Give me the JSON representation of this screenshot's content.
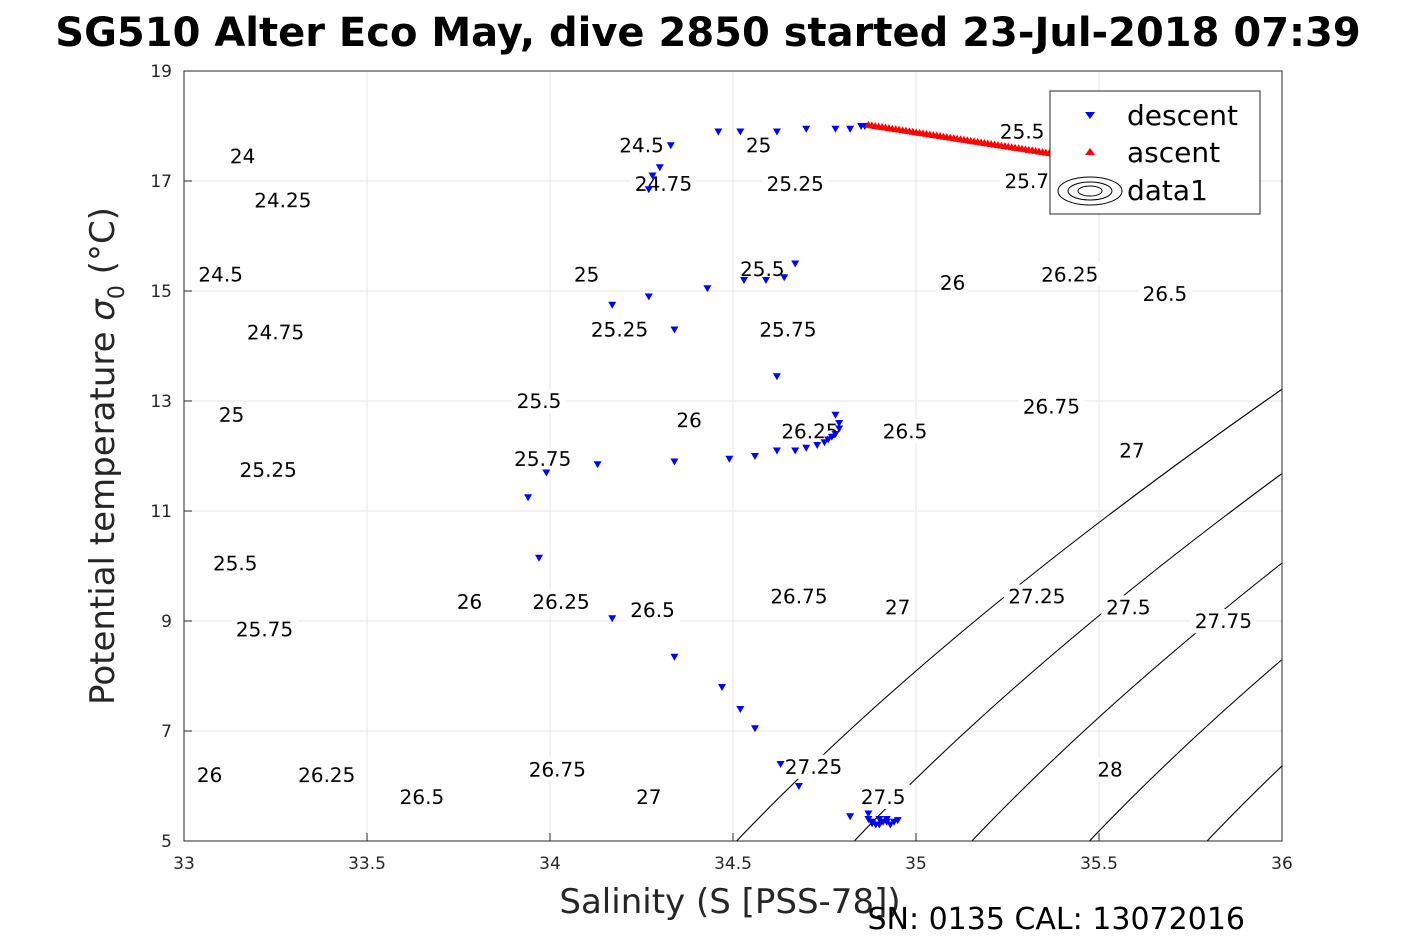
{
  "title": "SG510 Alter Eco May, dive 2850 started 23-Jul-2018 07:39",
  "footer": "SN: 0135  CAL: 13072016",
  "chart_data": {
    "type": "scatter",
    "xlabel": "Salinity (S [PSS-78])",
    "ylabel_main": "Potential temperature ",
    "ylabel_sym": "σ",
    "ylabel_sub": "0",
    "ylabel_unit": " (°C)",
    "xlim": [
      33,
      36
    ],
    "ylim": [
      5,
      19
    ],
    "xticks": [
      "33",
      "33.5",
      "34",
      "34.5",
      "35",
      "35.5",
      "36"
    ],
    "yticks": [
      "5",
      "7",
      "9",
      "11",
      "13",
      "15",
      "17",
      "19"
    ],
    "grid": true,
    "legend_position": "top-right",
    "colors": {
      "descent": "#0000ff",
      "ascent": "#ff0000",
      "contour": "#000000",
      "grid": "#e6e6e6"
    },
    "series": [
      {
        "name": "descent",
        "marker": "triangle-down",
        "color": "#0000ff",
        "points": [
          [
            33.94,
            11.25
          ],
          [
            33.97,
            10.15
          ],
          [
            33.99,
            11.7
          ],
          [
            34.13,
            11.85
          ],
          [
            34.17,
            9.05
          ],
          [
            34.17,
            14.75
          ],
          [
            34.27,
            16.85
          ],
          [
            34.28,
            17.1
          ],
          [
            34.3,
            17.25
          ],
          [
            34.27,
            14.9
          ],
          [
            34.33,
            17.65
          ],
          [
            34.34,
            14.3
          ],
          [
            34.34,
            11.9
          ],
          [
            34.34,
            8.35
          ],
          [
            34.43,
            15.05
          ],
          [
            34.46,
            17.9
          ],
          [
            34.47,
            7.8
          ],
          [
            34.49,
            11.95
          ],
          [
            34.52,
            17.9
          ],
          [
            34.52,
            7.4
          ],
          [
            34.53,
            15.2
          ],
          [
            34.56,
            12.0
          ],
          [
            34.56,
            7.05
          ],
          [
            34.59,
            15.2
          ],
          [
            34.62,
            13.45
          ],
          [
            34.62,
            17.9
          ],
          [
            34.62,
            12.1
          ],
          [
            34.63,
            6.4
          ],
          [
            34.64,
            15.25
          ],
          [
            34.67,
            15.5
          ],
          [
            34.67,
            12.1
          ],
          [
            34.68,
            6.0
          ],
          [
            34.7,
            12.15
          ],
          [
            34.7,
            17.95
          ],
          [
            34.73,
            12.2
          ],
          [
            34.75,
            12.25
          ],
          [
            34.76,
            12.3
          ],
          [
            34.77,
            12.35
          ],
          [
            34.78,
            12.4
          ],
          [
            34.79,
            12.5
          ],
          [
            34.79,
            12.6
          ],
          [
            34.78,
            17.95
          ],
          [
            34.78,
            12.75
          ],
          [
            34.82,
            17.95
          ],
          [
            34.82,
            5.45
          ],
          [
            34.85,
            18.0
          ],
          [
            34.86,
            18.0
          ],
          [
            34.87,
            5.5
          ],
          [
            34.87,
            5.4
          ],
          [
            34.88,
            5.35
          ],
          [
            34.89,
            5.3
          ],
          [
            34.9,
            5.3
          ],
          [
            34.91,
            5.35
          ],
          [
            34.92,
            5.35
          ],
          [
            34.93,
            5.3
          ],
          [
            34.94,
            5.35
          ],
          [
            34.95,
            5.38
          ],
          [
            34.88,
            5.32
          ],
          [
            34.9,
            5.4
          ],
          [
            34.92,
            5.4
          ]
        ]
      },
      {
        "name": "ascent",
        "marker": "triangle-up",
        "color": "#ff0000",
        "segment": {
          "s0": 34.87,
          "t0": 18.02,
          "s1": 35.42,
          "t1": 17.45,
          "n": 60
        }
      },
      {
        "name": "data1",
        "marker": "contour"
      }
    ],
    "contours": [
      {
        "level": "24",
        "sigma": 24.0
      },
      {
        "level": "24.25",
        "sigma": 24.25
      },
      {
        "level": "24.5",
        "sigma": 24.5
      },
      {
        "level": "24.75",
        "sigma": 24.75
      },
      {
        "level": "25",
        "sigma": 25.0
      },
      {
        "level": "25.25",
        "sigma": 25.25
      },
      {
        "level": "25.5",
        "sigma": 25.5
      },
      {
        "level": "25.75",
        "sigma": 25.75
      },
      {
        "level": "26",
        "sigma": 26.0
      },
      {
        "level": "26.25",
        "sigma": 26.25
      },
      {
        "level": "26.5",
        "sigma": 26.5
      },
      {
        "level": "26.75",
        "sigma": 26.75
      },
      {
        "level": "27",
        "sigma": 27.0
      },
      {
        "level": "27.25",
        "sigma": 27.25
      },
      {
        "level": "27.5",
        "sigma": 27.5
      },
      {
        "level": "27.75",
        "sigma": 27.75
      },
      {
        "level": "28",
        "sigma": 28.0
      }
    ],
    "contour_labels": [
      [
        "24",
        33.16,
        17.45
      ],
      [
        "24.25",
        33.27,
        16.65
      ],
      [
        "24.5",
        33.1,
        15.3
      ],
      [
        "24.75",
        33.25,
        14.25
      ],
      [
        "25",
        33.13,
        12.75
      ],
      [
        "25.25",
        33.23,
        11.75
      ],
      [
        "25.5",
        33.14,
        10.05
      ],
      [
        "25.75",
        33.22,
        8.85
      ],
      [
        "26",
        33.07,
        6.2
      ],
      [
        "26.25",
        33.39,
        6.2
      ],
      [
        "26.5",
        33.65,
        5.8
      ],
      [
        "26.75",
        34.02,
        6.3
      ],
      [
        "27",
        34.27,
        5.8
      ],
      [
        "27.25",
        34.72,
        6.35
      ],
      [
        "27.5",
        34.91,
        5.8
      ],
      [
        "24.5",
        34.25,
        17.65
      ],
      [
        "24.75",
        34.31,
        16.95
      ],
      [
        "25",
        34.1,
        15.3
      ],
      [
        "25.25",
        34.19,
        14.3
      ],
      [
        "25.5",
        33.97,
        13.0
      ],
      [
        "25.75",
        33.98,
        11.95
      ],
      [
        "26",
        33.78,
        9.35
      ],
      [
        "26.25",
        34.03,
        9.35
      ],
      [
        "26.5",
        34.28,
        9.2
      ],
      [
        "26.75",
        34.68,
        9.45
      ],
      [
        "27",
        34.95,
        9.25
      ],
      [
        "27.25",
        35.33,
        9.45
      ],
      [
        "27.5",
        35.58,
        9.25
      ],
      [
        "27.75",
        35.84,
        9.0
      ],
      [
        "25",
        34.57,
        17.65
      ],
      [
        "25.25",
        34.67,
        16.95
      ],
      [
        "25.5",
        34.58,
        15.4
      ],
      [
        "25.75",
        34.65,
        14.3
      ],
      [
        "26",
        34.38,
        12.65
      ],
      [
        "26.25",
        34.71,
        12.45
      ],
      [
        "26.5",
        34.97,
        12.45
      ],
      [
        "26.75",
        35.37,
        12.9
      ],
      [
        "27",
        35.59,
        12.1
      ],
      [
        "26",
        35.1,
        15.15
      ],
      [
        "26.25",
        35.42,
        15.3
      ],
      [
        "26.5",
        35.68,
        14.95
      ],
      [
        "25.5",
        35.29,
        17.9
      ],
      [
        "25.75",
        35.32,
        17.0
      ],
      [
        "28",
        35.53,
        6.3
      ]
    ]
  }
}
